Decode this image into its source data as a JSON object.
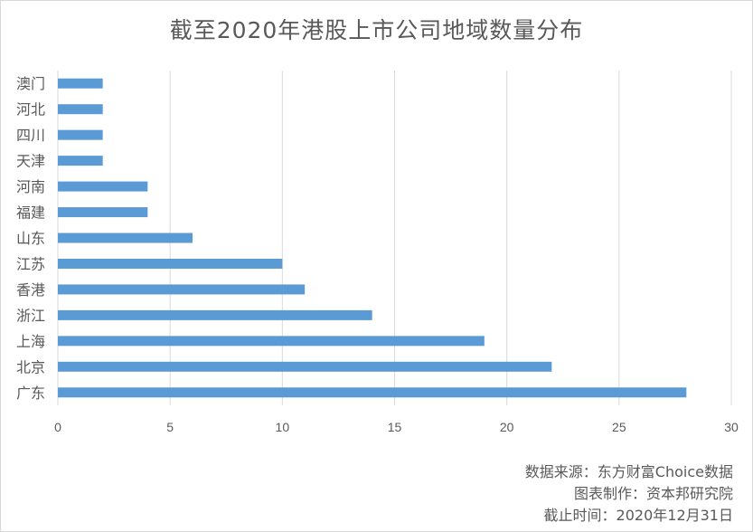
{
  "chart_data": {
    "type": "bar",
    "orientation": "horizontal",
    "title": "截至2020年港股上市公司地域数量分布",
    "categories": [
      "澳门",
      "河北",
      "四川",
      "天津",
      "河南",
      "福建",
      "山东",
      "江苏",
      "香港",
      "浙江",
      "上海",
      "北京",
      "广东"
    ],
    "values": [
      2,
      2,
      2,
      2,
      4,
      4,
      6,
      10,
      11,
      14,
      19,
      22,
      28
    ],
    "xlim": [
      0,
      30
    ],
    "xticks": [
      0,
      5,
      10,
      15,
      20,
      25,
      30
    ],
    "grid": true,
    "legend": "none",
    "bar_color": "#5b9bd5",
    "grid_color": "#d9d9d9",
    "text_color": "#595959"
  },
  "footer": {
    "source": "数据来源：东方财富Choice数据",
    "maker": "图表制作：资本邦研究院",
    "date": "截止时间：2020年12月31日"
  }
}
